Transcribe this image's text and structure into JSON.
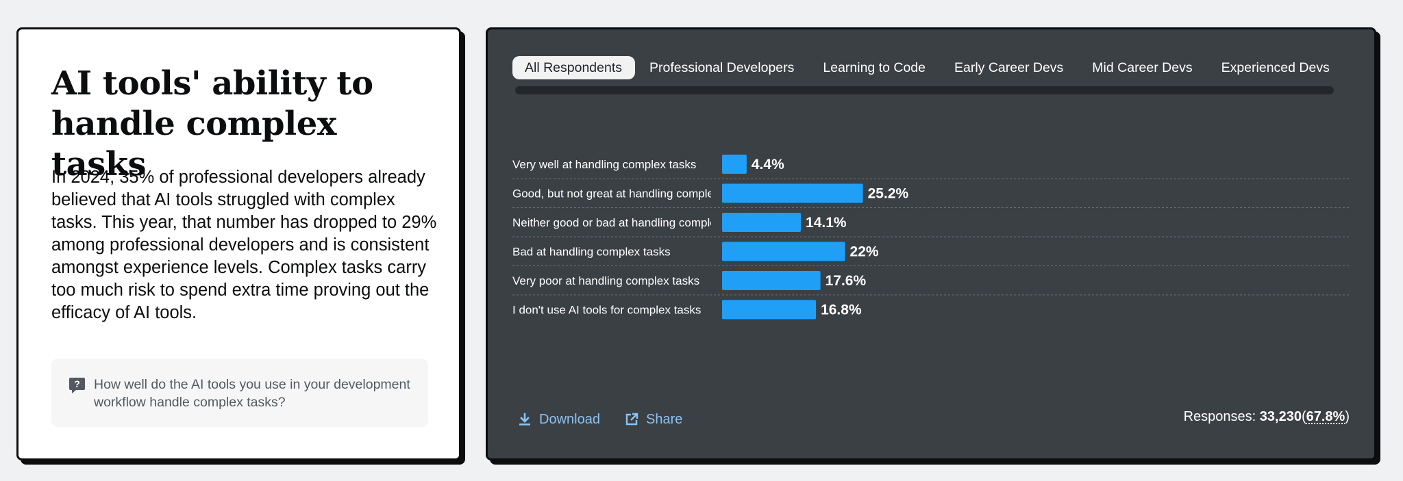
{
  "left": {
    "title": "AI tools' ability to handle complex tasks",
    "body": "In 2024, 35% of professional developers already believed that AI tools struggled with complex tasks. This year, that number has dropped to 29% among professional developers and is consistent amongst experience levels. Complex tasks carry too much risk to spend extra time proving out the efficacy of AI tools.",
    "question": "How well do the AI tools you use in your development workflow handle complex tasks?",
    "question_icon": "question-mark-icon"
  },
  "tabs": [
    {
      "label": "All Respondents",
      "active": true
    },
    {
      "label": "Professional Developers",
      "active": false
    },
    {
      "label": "Learning to Code",
      "active": false
    },
    {
      "label": "Early Career Devs",
      "active": false
    },
    {
      "label": "Mid Career Devs",
      "active": false
    },
    {
      "label": "Experienced Devs",
      "active": false
    }
  ],
  "footer": {
    "download_label": "Download",
    "download_icon": "download-icon",
    "share_label": "Share",
    "share_icon": "external-share-icon",
    "responses_label": "Responses:",
    "responses_count": "33,230",
    "responses_open": "(",
    "responses_pct": "67.8%",
    "responses_close": ")"
  },
  "colors": {
    "bar": "#1f9ff5",
    "panel": "#3b4045",
    "link": "#8bc3f3"
  },
  "chart_data": {
    "type": "bar",
    "orientation": "horizontal",
    "categories": [
      "Very well at handling complex tasks",
      "Good, but not great at handling complex tasks",
      "Neither good or bad at handling complex tasks",
      "Bad at handling complex tasks",
      "Very poor at handling complex tasks",
      "I don't use AI tools for complex tasks"
    ],
    "values": [
      4.4,
      25.2,
      14.1,
      22,
      17.6,
      16.8
    ],
    "value_labels": [
      "4.4%",
      "25.2%",
      "14.1%",
      "22%",
      "17.6%",
      "16.8%"
    ],
    "unit": "%",
    "grid": false,
    "title": "",
    "xlabel": "",
    "ylabel": ""
  }
}
